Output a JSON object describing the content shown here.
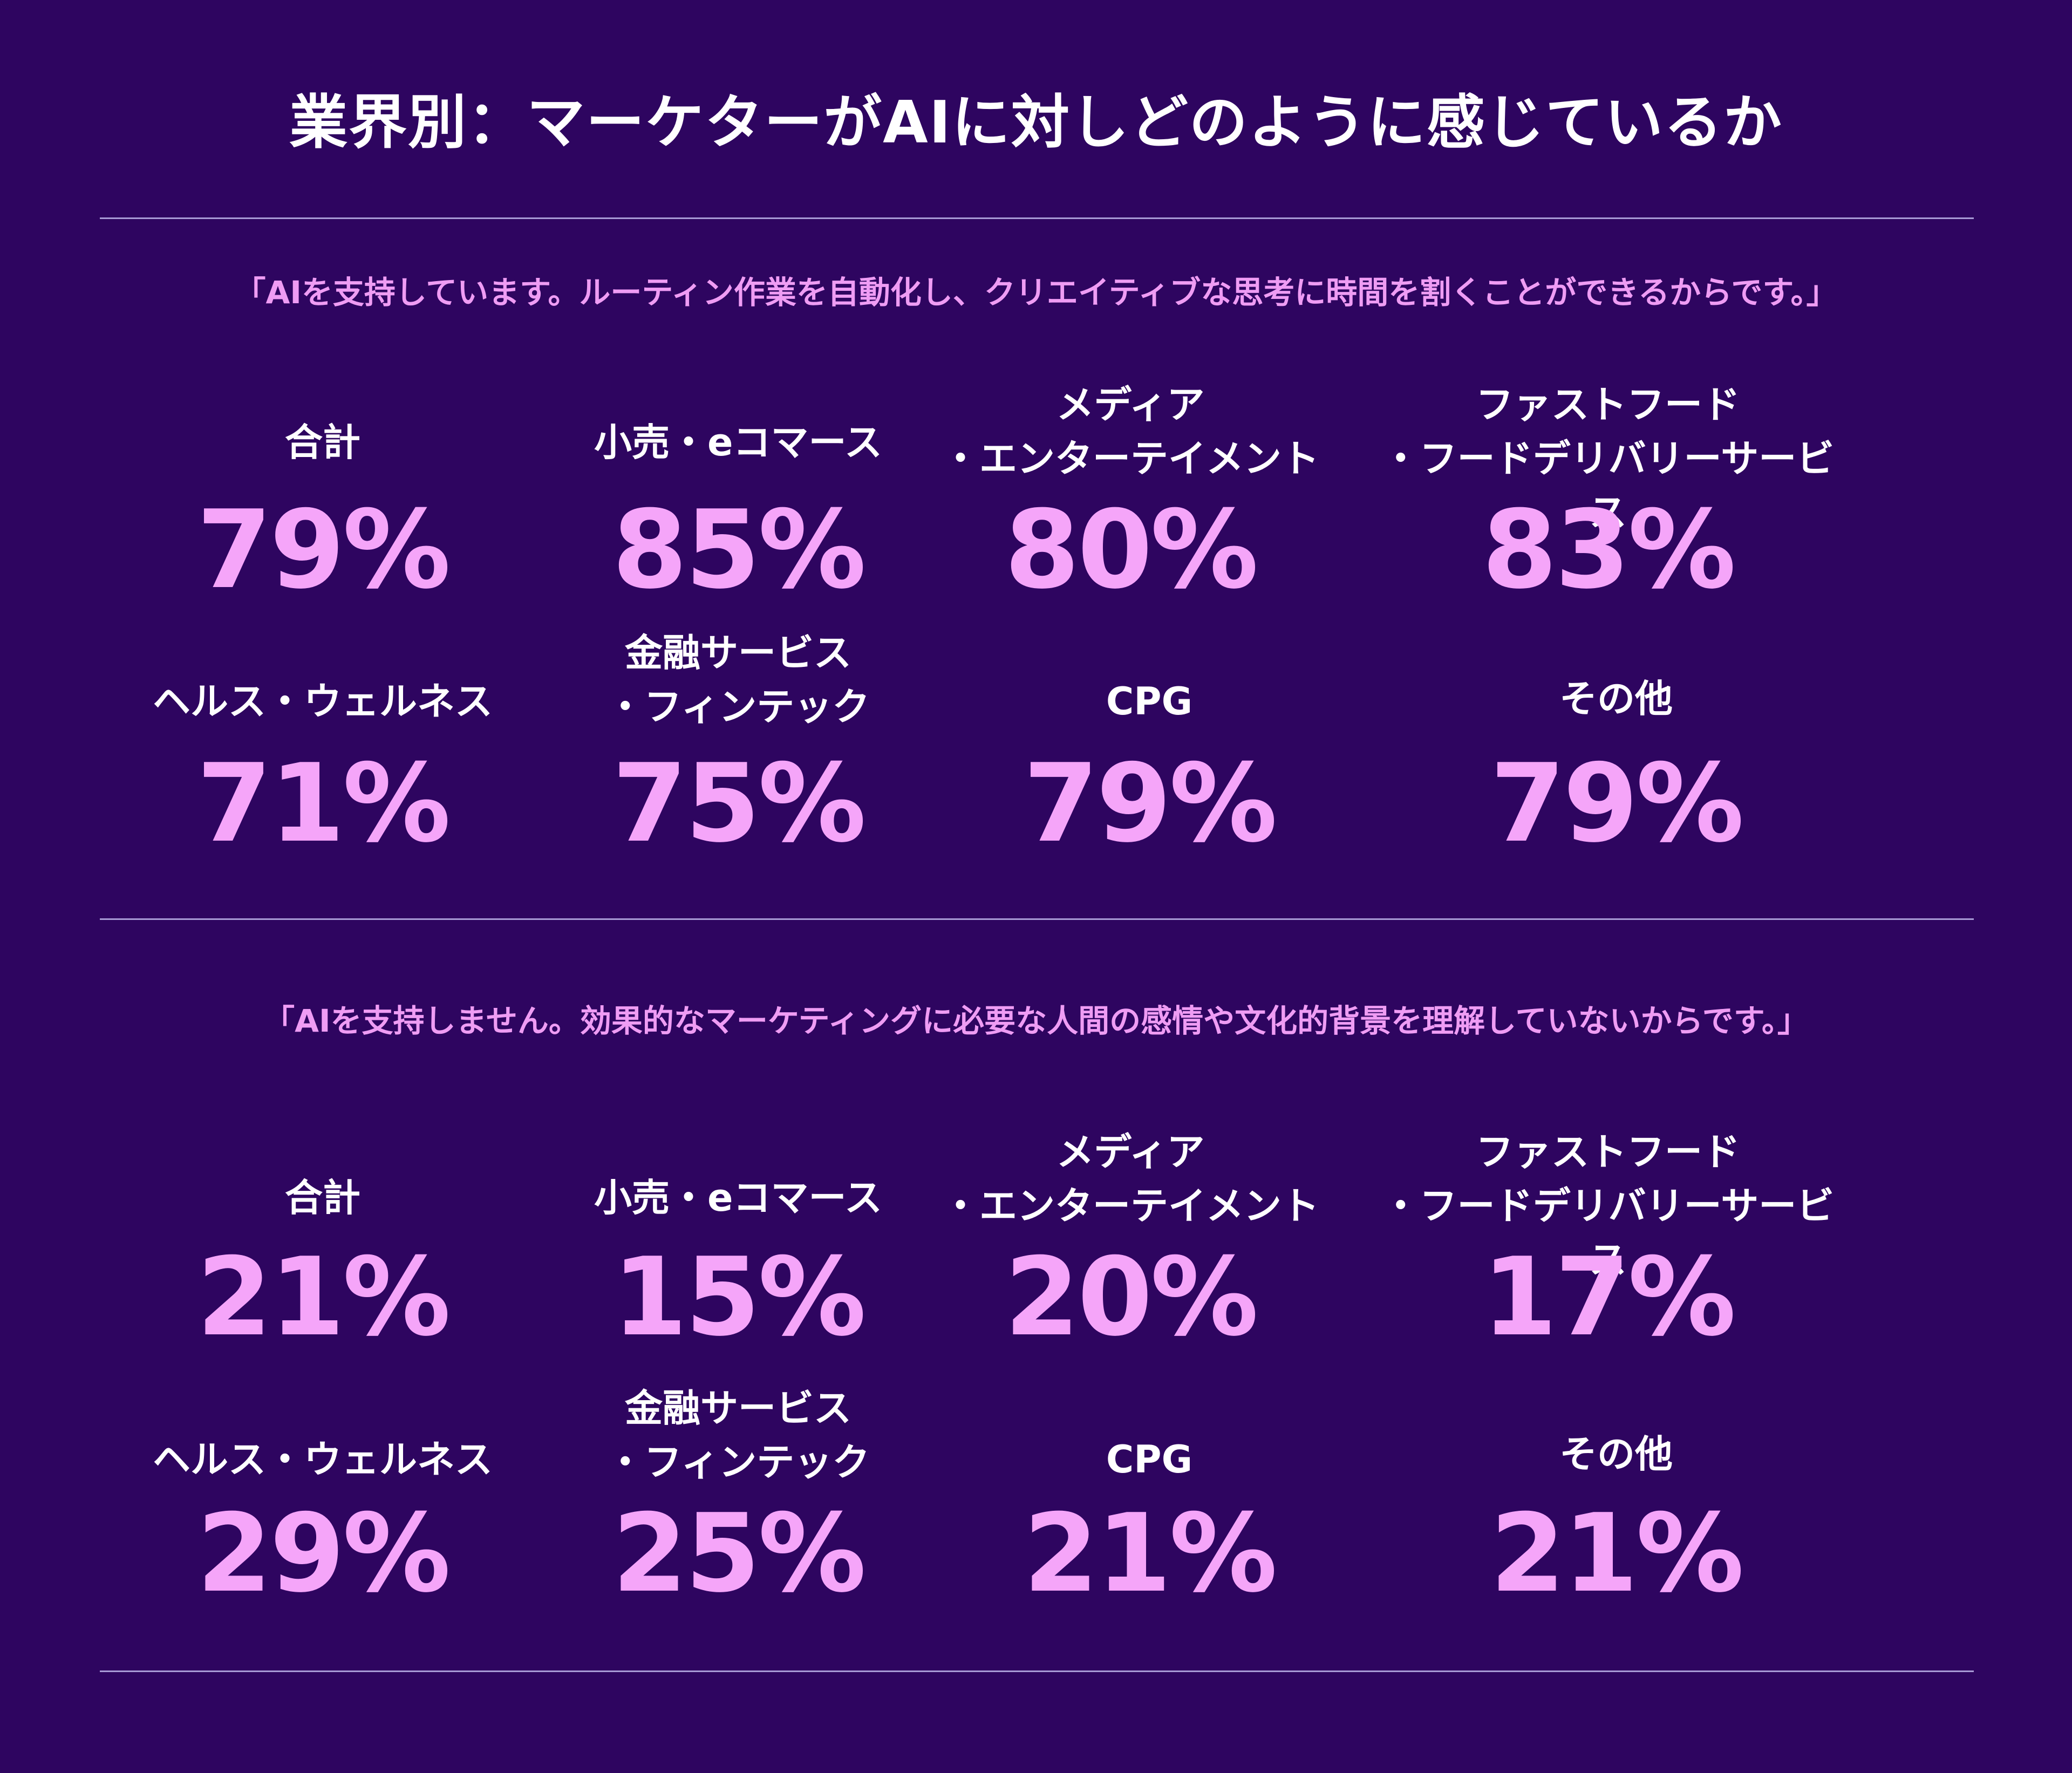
{
  "title": "業界別：マーケターがAIに対しどのように感じているか",
  "sections": [
    {
      "quote": "「AIを支持しています。ルーティン作業を自動化し、クリエイティブな思考に時間を割くことができるからです。」",
      "stats": [
        {
          "label": "合計",
          "value": "79%"
        },
        {
          "label": "小売・eコマース",
          "value": "85%"
        },
        {
          "label": "メディア\n・エンターテイメント",
          "value": "80%"
        },
        {
          "label": "ファストフード\n・フードデリバリーサービス",
          "value": "83%"
        },
        {
          "label": "ヘルス・ウェルネス",
          "value": "71%"
        },
        {
          "label": "金融サービス\n・フィンテック",
          "value": "75%"
        },
        {
          "label": "CPG",
          "value": "79%"
        },
        {
          "label": "その他",
          "value": "79%"
        }
      ]
    },
    {
      "quote": "「AIを支持しません。効果的なマーケティングに必要な人間の感情や文化的背景を理解していないからです。」",
      "stats": [
        {
          "label": "合計",
          "value": "21%"
        },
        {
          "label": "小売・eコマース",
          "value": "15%"
        },
        {
          "label": "メディア\n・エンターテイメント",
          "value": "20%"
        },
        {
          "label": "ファストフード\n・フードデリバリーサービス",
          "value": "17%"
        },
        {
          "label": "ヘルス・ウェルネス",
          "value": "29%"
        },
        {
          "label": "金融サービス\n・フィンテック",
          "value": "25%"
        },
        {
          "label": "CPG",
          "value": "21%"
        },
        {
          "label": "その他",
          "value": "21%"
        }
      ]
    }
  ]
}
